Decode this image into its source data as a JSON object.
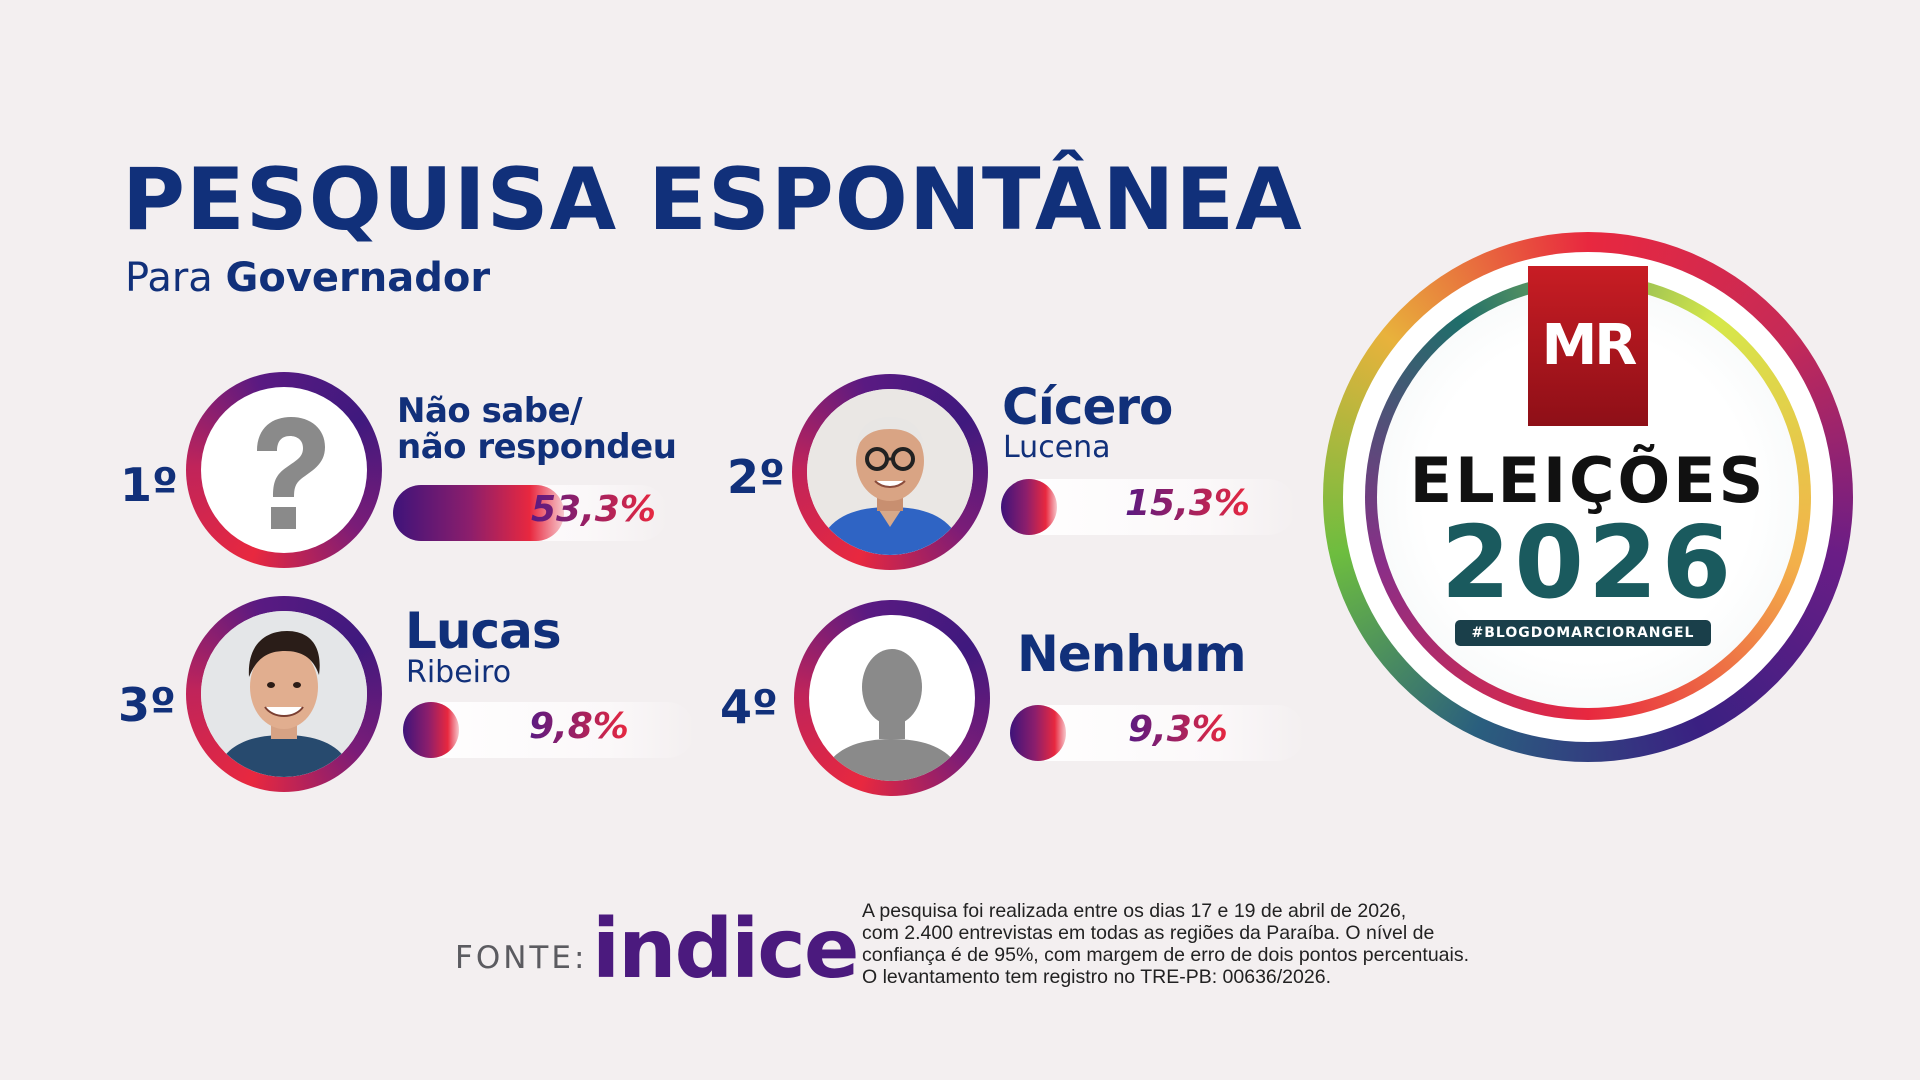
{
  "title": "PESQUISA ESPONTÂNEA",
  "subtitle_prefix": "Para",
  "subtitle_main": "Governador",
  "chart_data": {
    "type": "bar",
    "title": "PESQUISA ESPONTÂNEA",
    "subtitle": "Para Governador",
    "categories": [
      "Não sabe/não respondeu",
      "Cícero Lucena",
      "Lucas Ribeiro",
      "Nenhum"
    ],
    "values": [
      53.3,
      15.3,
      9.8,
      9.3
    ],
    "unit": "%",
    "items": [
      {
        "rank": "1º",
        "name_line1": "Não sabe/",
        "name_line2": "não respondeu",
        "value": 53.3,
        "label": "53,3%",
        "icon": "question-mark-icon"
      },
      {
        "rank": "2º",
        "name_line1": "Cícero",
        "name_line2": "Lucena",
        "value": 15.3,
        "label": "15,3%",
        "icon": "candidate-photo"
      },
      {
        "rank": "3º",
        "name_line1": "Lucas",
        "name_line2": "Ribeiro",
        "value": 9.8,
        "label": "9,8%",
        "icon": "candidate-photo"
      },
      {
        "rank": "4º",
        "name_line1": "Nenhum",
        "name_line2": "",
        "value": 9.3,
        "label": "9,3%",
        "icon": "person-silhouette-icon"
      }
    ]
  },
  "logo": {
    "mr": "MR",
    "eleicoes": "ELEIÇÕES",
    "year": "2026",
    "hashtag": "#BLOGDOMARCIORANGEL"
  },
  "footer": {
    "fonte": "FONTE:",
    "source_name": "indice",
    "note_lines": [
      "A pesquisa foi realizada entre os dias 17 e 19 de abril de 2026,",
      "com 2.400 entrevistas em todas as regiões da Paraíba. O nível de",
      "confiança é de 95%, com margem de erro de dois pontos percentuais.",
      "O levantamento tem registro no TRE-PB: 00636/2026."
    ]
  },
  "colors": {
    "navy": "#11307a",
    "bar_start": "#3e137a",
    "bar_end": "#e8283f",
    "background": "#f3eff0"
  }
}
